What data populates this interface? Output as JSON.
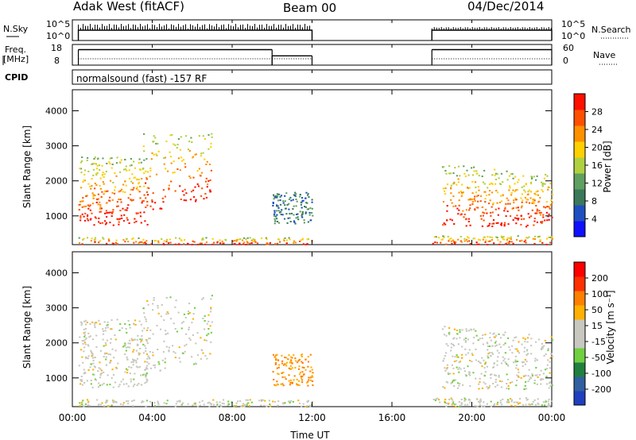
{
  "header": {
    "station": "Adak West (fitACF)",
    "beam": "Beam 00",
    "date": "04/Dec/2014"
  },
  "colors": {
    "power_scale": [
      "#1010ff",
      "#2050c0",
      "#3a7a5a",
      "#60a060",
      "#b0d040",
      "#ffd000",
      "#ff9000",
      "#ff5000",
      "#ff1000"
    ],
    "velocity_scale": [
      "#2040c0",
      "#3060a0",
      "#208040",
      "#70d040",
      "#c8c8c0",
      "#c8c8c0",
      "#ffb000",
      "#ff8000",
      "#ff3000",
      "#ff0000"
    ],
    "trace": "#000000"
  },
  "chart_data": [
    {
      "type": "line",
      "panel": "nsky",
      "left_label": "N.Sky",
      "right_label": "N.Search",
      "left_ticks": [
        "10^5",
        "10^0"
      ],
      "right_ticks": [
        "10^5",
        "10^0"
      ],
      "segments": [
        [
          0.3,
          12.0
        ],
        [
          18.0,
          24.0
        ]
      ]
    },
    {
      "type": "line",
      "panel": "freq",
      "left_label_1": "Freq.",
      "left_label_2": "[MHz]",
      "right_label": "Nave",
      "left_ticks": [
        "18",
        "8"
      ],
      "right_ticks": [
        "60",
        "0"
      ],
      "freq_steps": [
        {
          "x": [
            0.3,
            10.0
          ],
          "level": 0.75
        },
        {
          "x": [
            10.0,
            12.0
          ],
          "level": 0.45
        },
        {
          "x": [
            18.0,
            24.0
          ],
          "level": 0.75
        }
      ]
    },
    {
      "type": "table",
      "panel": "cpid",
      "label": "CPID",
      "text": "normalsound (fast) -157 RF"
    },
    {
      "type": "heatmap",
      "panel": "power",
      "ylabel": "Slant Range [km]",
      "xlabel": "",
      "xlim": [
        0,
        24
      ],
      "ylim": [
        180,
        4600
      ],
      "y_ticks": [
        "1000",
        "2000",
        "3000",
        "4000"
      ],
      "y_tick_values": [
        1000,
        2000,
        3000,
        4000
      ],
      "colorbar_label": "Power [dB]",
      "colorbar_ticks": [
        "4",
        "8",
        "12",
        "16",
        "20",
        "24",
        "28"
      ]
    },
    {
      "type": "heatmap",
      "panel": "velocity",
      "ylabel": "Slant Range [km]",
      "xlabel": "Time UT",
      "xlim": [
        0,
        24
      ],
      "ylim": [
        180,
        4600
      ],
      "x_ticks": [
        "00:00",
        "04:00",
        "08:00",
        "12:00",
        "16:00",
        "20:00",
        "00:00"
      ],
      "x_tick_values": [
        0,
        4,
        8,
        12,
        16,
        20,
        24
      ],
      "y_ticks": [
        "1000",
        "2000",
        "3000",
        "4000"
      ],
      "y_tick_values": [
        1000,
        2000,
        3000,
        4000
      ],
      "colorbar_label": "Velocity [m s⁻¹]",
      "colorbar_ticks": [
        "200",
        "100",
        "50",
        "15",
        "-15",
        "-50",
        "-100",
        "-200"
      ]
    }
  ]
}
